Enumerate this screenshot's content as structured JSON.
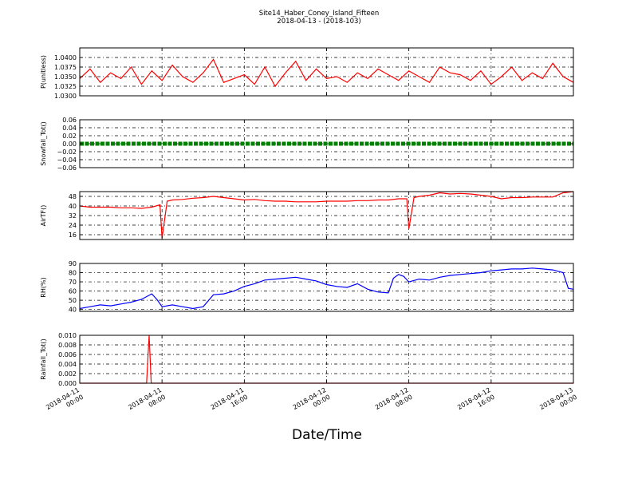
{
  "title_line1": "Site14_Haber_Coney_Island_Fifteen",
  "title_line2": "2018-04-13 - (2018-103)",
  "xlabel": "Date/Time",
  "x_ticks": [
    [
      "2018-04-11",
      "00:00"
    ],
    [
      "2018-04-11",
      "08:00"
    ],
    [
      "2018-04-11",
      "16:00"
    ],
    [
      "2018-04-12",
      "00:00"
    ],
    [
      "2018-04-12",
      "08:00"
    ],
    [
      "2018-04-12",
      "16:00"
    ],
    [
      "2018-04-13",
      "00:00"
    ]
  ],
  "chart_data": [
    {
      "type": "line",
      "ylabel": "P(unitless)",
      "ylim": [
        1.03,
        1.0425
      ],
      "yticks": [
        "1.0300",
        "1.0325",
        "1.0350",
        "1.0375",
        "1.0400"
      ],
      "ytick_values": [
        1.03,
        1.0325,
        1.035,
        1.0375,
        1.04
      ],
      "grid": true,
      "color": "#ff0000",
      "x_hours": [
        0,
        1,
        2,
        3,
        4,
        5,
        6,
        7,
        8,
        9,
        10,
        11,
        12,
        13,
        14,
        15,
        16,
        17,
        18,
        19,
        20,
        21,
        22,
        23,
        24,
        25,
        26,
        27,
        28,
        29,
        30,
        31,
        32,
        33,
        34,
        35,
        36,
        37,
        38,
        39,
        40,
        41,
        42,
        43,
        44,
        45,
        46,
        47,
        48
      ],
      "values": [
        1.0345,
        1.037,
        1.0335,
        1.036,
        1.0345,
        1.0375,
        1.033,
        1.0365,
        1.034,
        1.038,
        1.035,
        1.0335,
        1.036,
        1.0395,
        1.0335,
        1.0345,
        1.0355,
        1.033,
        1.0375,
        1.0325,
        1.036,
        1.039,
        1.034,
        1.037,
        1.0345,
        1.035,
        1.0335,
        1.036,
        1.0345,
        1.037,
        1.0355,
        1.034,
        1.0365,
        1.035,
        1.0335,
        1.0375,
        1.036,
        1.0355,
        1.034,
        1.0365,
        1.033,
        1.035,
        1.0375,
        1.034,
        1.036,
        1.0345,
        1.0385,
        1.035,
        1.0335
      ]
    },
    {
      "type": "line",
      "ylabel": "Snowfall_Tot()",
      "ylim": [
        -0.06,
        0.06
      ],
      "yticks": [
        "−0.06",
        "−0.04",
        "−0.02",
        "0.00",
        "0.02",
        "0.04",
        "0.06"
      ],
      "ytick_values": [
        -0.06,
        -0.04,
        -0.02,
        0,
        0.02,
        0.04,
        0.06
      ],
      "grid": true,
      "color": "#008000",
      "x_hours": [
        0,
        48
      ],
      "values": [
        0,
        0
      ]
    },
    {
      "type": "line",
      "ylabel": "AirTF()",
      "ylim": [
        12,
        52
      ],
      "yticks": [
        "16",
        "24",
        "32",
        "40",
        "48"
      ],
      "ytick_values": [
        16,
        24,
        32,
        40,
        48
      ],
      "grid": true,
      "color": "#ff0000",
      "x_hours": [
        0,
        1,
        2,
        3,
        4,
        5,
        6,
        7,
        7.8,
        8,
        8.5,
        9,
        10,
        11,
        12,
        13,
        14,
        15,
        16,
        17,
        18,
        19,
        20,
        21,
        22,
        23,
        24,
        25,
        26,
        27,
        28,
        29,
        30,
        31,
        31.8,
        32,
        32.5,
        33,
        34,
        35,
        36,
        37,
        38,
        39,
        40,
        41,
        42,
        43,
        44,
        45,
        46,
        47,
        48
      ],
      "values": [
        40,
        39,
        39,
        39,
        38.5,
        38.5,
        38,
        39,
        41,
        13,
        44,
        45,
        45.5,
        46.5,
        47,
        48,
        47,
        46,
        45,
        45.5,
        44.5,
        44,
        44,
        43.5,
        43.5,
        43.5,
        44,
        44,
        44,
        44.5,
        44.5,
        45,
        45,
        46,
        46,
        21,
        47,
        48,
        49,
        51,
        50,
        50.5,
        50,
        49,
        48,
        46,
        47,
        47,
        47.5,
        47.5,
        47.5,
        51,
        52
      ]
    },
    {
      "type": "line",
      "ylabel": "RH(%)",
      "ylim": [
        38,
        90
      ],
      "yticks": [
        "40",
        "50",
        "60",
        "70",
        "80",
        "90"
      ],
      "ytick_values": [
        40,
        50,
        60,
        70,
        80,
        90
      ],
      "grid": true,
      "color": "#0000ff",
      "x_hours": [
        0,
        1,
        2,
        3,
        4,
        5,
        6,
        7,
        7.5,
        8,
        9,
        10,
        11,
        12,
        13,
        14,
        15,
        16,
        17,
        18,
        19,
        20,
        21,
        22,
        23,
        24,
        25,
        26,
        27,
        28,
        29,
        30,
        30.5,
        31,
        31.5,
        32,
        33,
        34,
        35,
        36,
        37,
        38,
        39,
        40,
        41,
        42,
        43,
        44,
        45,
        46,
        47,
        47.5,
        48
      ],
      "values": [
        41,
        43,
        45,
        44,
        46,
        48,
        51,
        57,
        51,
        43,
        45,
        43,
        41,
        43,
        56,
        57,
        60,
        65,
        68,
        72,
        73,
        74,
        75,
        73,
        71,
        67,
        65,
        64,
        68,
        62,
        59,
        58,
        74,
        78,
        76,
        70,
        73,
        72,
        75,
        77,
        78,
        79,
        80,
        82,
        83,
        84,
        84,
        85,
        84,
        83,
        80,
        63,
        62
      ]
    },
    {
      "type": "line",
      "ylabel": "Rainfall_Tot()",
      "ylim": [
        0,
        0.01
      ],
      "yticks": [
        "0.000",
        "0.002",
        "0.004",
        "0.006",
        "0.008",
        "0.010"
      ],
      "ytick_values": [
        0,
        0.002,
        0.004,
        0.006,
        0.008,
        0.01
      ],
      "grid": true,
      "color": "#ff0000",
      "x_hours": [
        0,
        6.5,
        6.75,
        6.95,
        48
      ],
      "values": [
        0,
        0,
        0.01,
        0,
        0
      ]
    }
  ]
}
